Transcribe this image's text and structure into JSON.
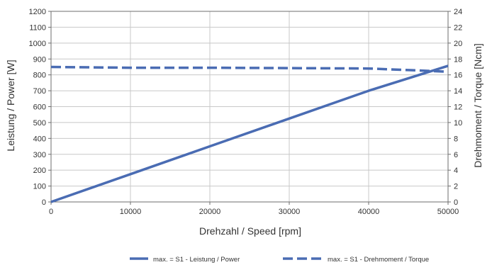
{
  "chart_data": {
    "type": "line",
    "title": "",
    "xlabel": "Drehzahl / Speed [rpm]",
    "ylabel": "Leistung / Power [W]",
    "y2label": "Drehmoment / Torque [Ncm]",
    "xlim": [
      0,
      50000
    ],
    "ylim": [
      0,
      1200
    ],
    "y2lim": [
      0,
      24
    ],
    "xticks": [
      0,
      10000,
      20000,
      30000,
      40000,
      50000
    ],
    "yticks": [
      0,
      100,
      200,
      300,
      400,
      500,
      600,
      700,
      800,
      900,
      1000,
      1100,
      1200
    ],
    "y2ticks": [
      0,
      2,
      4,
      6,
      8,
      10,
      12,
      14,
      16,
      18,
      20,
      22,
      24
    ],
    "grid": true,
    "legend_position": "bottom",
    "series": [
      {
        "name": "max. = S1 - Leistung / Power",
        "axis": "left",
        "style": "solid",
        "color": "#4a6cb3",
        "x": [
          0,
          10000,
          20000,
          30000,
          40000,
          50000
        ],
        "y": [
          0,
          175,
          350,
          525,
          700,
          857
        ]
      },
      {
        "name": "max. = S1 - Drehmoment / Torque",
        "axis": "right",
        "style": "dashed",
        "color": "#4a6cb3",
        "x": [
          0,
          10000,
          20000,
          30000,
          40000,
          45000,
          50000
        ],
        "y": [
          17.0,
          16.9,
          16.9,
          16.85,
          16.8,
          16.6,
          16.4
        ]
      }
    ]
  }
}
